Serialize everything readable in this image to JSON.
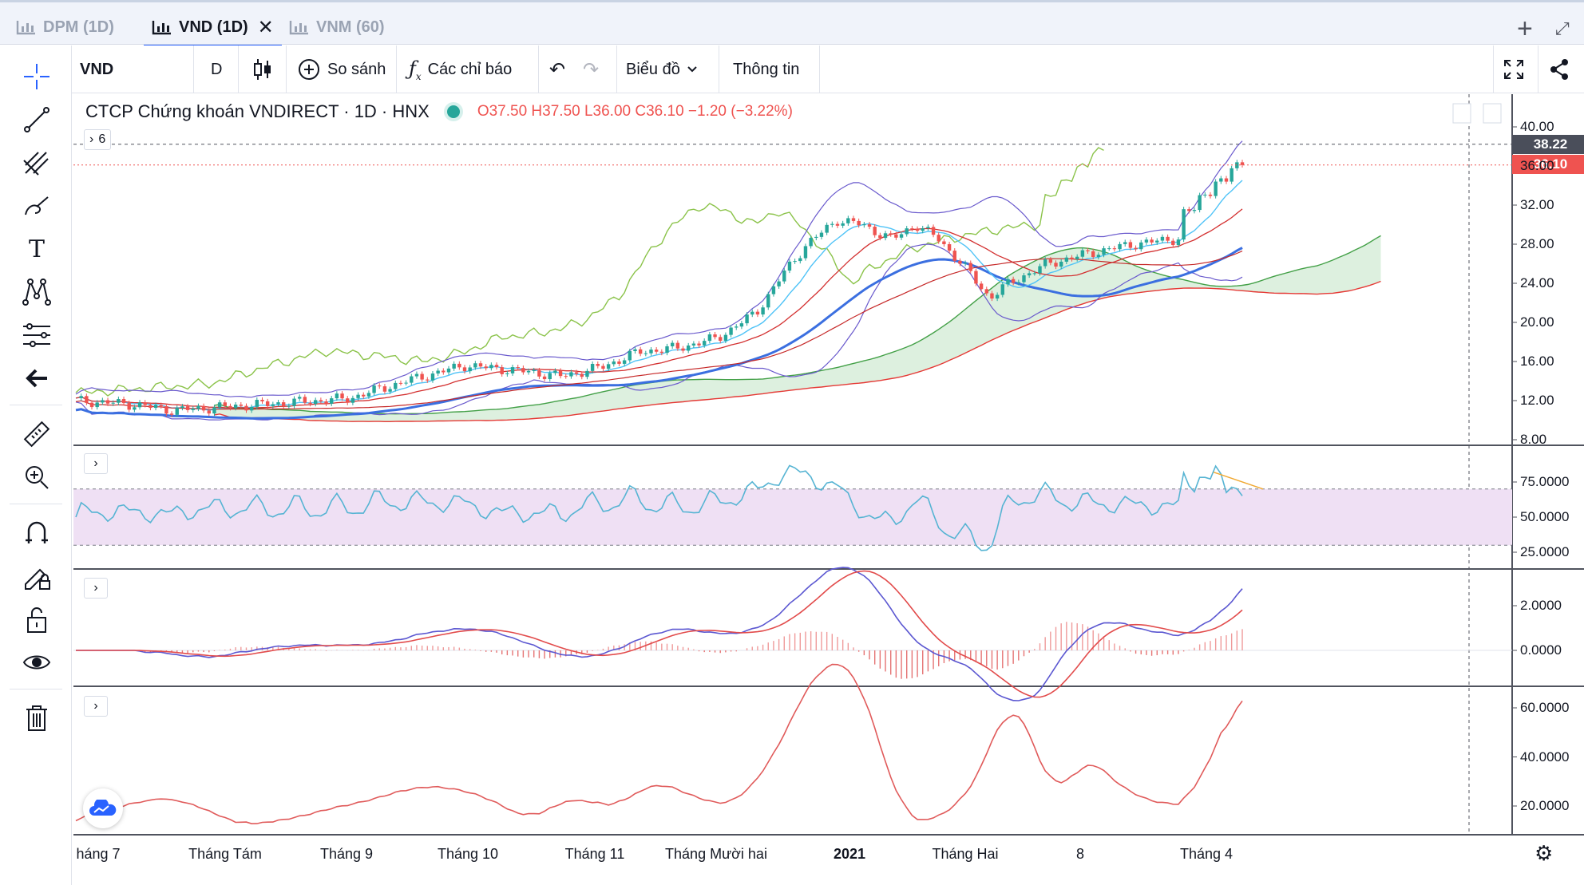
{
  "tabs": [
    {
      "label": "DPM (1D)",
      "active": false
    },
    {
      "label": "VND (1D)",
      "active": true
    },
    {
      "label": "VNM (60)",
      "active": false
    }
  ],
  "tab_actions": {
    "add": "+",
    "expand": "⤢"
  },
  "toolbar": {
    "symbol": "VND",
    "interval": "D",
    "compare_label": "So sánh",
    "indicators_label": "Các chỉ báo",
    "chart_label": "Biểu đồ",
    "info_label": "Thông tin"
  },
  "legend": {
    "title": "CTCP Chứng khoán VNDIRECT · 1D · HNX",
    "ohlc": "O37.50 H37.50 L36.00 C36.10 −1.20 (−3.22%)",
    "indicator_count": "6"
  },
  "price_axis": {
    "main_ticks": [
      "40.00",
      "36.00",
      "32.00",
      "28.00",
      "24.00",
      "20.00",
      "16.00",
      "12.00",
      "8.00"
    ],
    "rsi_ticks": [
      "75.0000",
      "50.0000",
      "25.0000"
    ],
    "macd_ticks": [
      "2.0000",
      "0.0000"
    ],
    "adx_ticks": [
      "60.0000",
      "40.0000",
      "20.0000"
    ],
    "label_high": "38.22",
    "label_last": "36.10"
  },
  "time_axis": [
    "háng 7",
    "Tháng Tám",
    "Tháng 9",
    "Tháng 10",
    "Tháng 11",
    "Tháng Mười hai",
    "2021",
    "Tháng Hai",
    "8",
    "Tháng 4"
  ],
  "colors": {
    "up": "#26a69a",
    "down": "#ef5350",
    "rsi": "#56b4d3",
    "rsi_band": "#efe0f4",
    "macd": "#5b57d1",
    "signal": "#e24b4b",
    "kijun": "#3b6fe0",
    "cloud_green": "#cfead1"
  },
  "icons": {
    "crosshair": "crosshair-icon",
    "trendline": "trend-line-icon",
    "pitchfork": "pitchfork-icon",
    "brush": "brush-icon",
    "text": "text-icon",
    "pattern": "pattern-icon",
    "fib": "fib-icon",
    "back": "arrow-left-icon",
    "ruler": "ruler-icon",
    "zoom": "zoom-in-icon",
    "magnet": "magnet-icon",
    "lockdraw": "pencil-lock-icon",
    "lock": "lock-icon",
    "eye": "eye-icon",
    "trash": "trash-icon"
  }
}
